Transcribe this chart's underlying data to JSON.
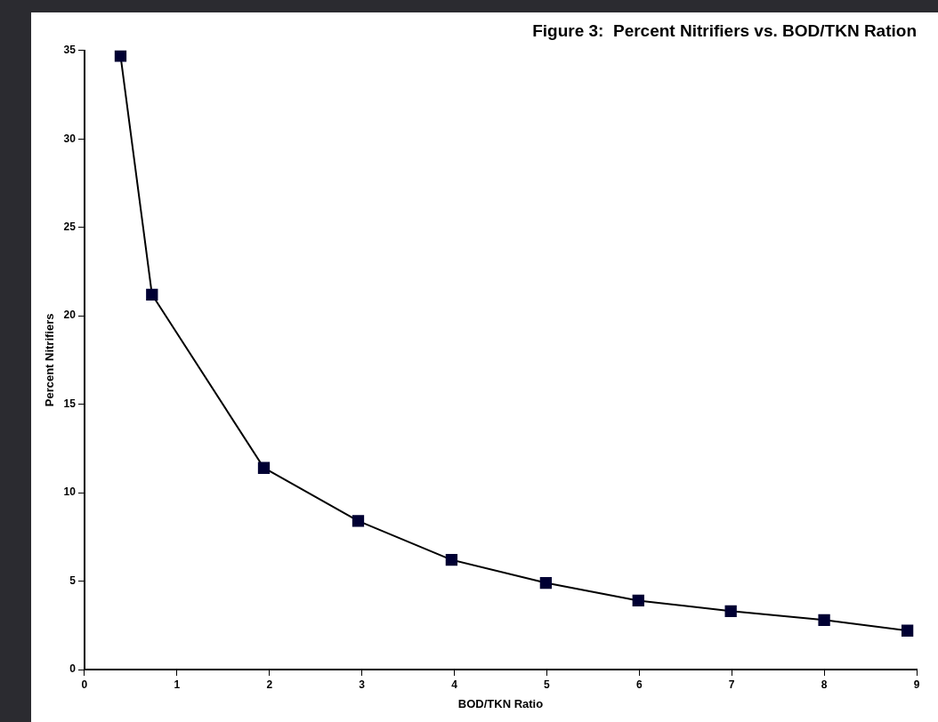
{
  "chart_data": {
    "type": "line",
    "title": "Figure 3:  Percent Nitrifiers vs. BOD/TKN Ration",
    "xlabel": "BOD/TKN Ratio",
    "ylabel": "Percent Nitrifiers",
    "x": [
      0.39,
      0.73,
      1.94,
      2.96,
      3.97,
      4.99,
      5.99,
      6.99,
      8.0,
      8.9
    ],
    "series": [
      {
        "color": "#000033",
        "values": [
          34.7,
          21.2,
          11.4,
          8.4,
          6.2,
          4.9,
          3.9,
          3.3,
          2.8,
          2.2
        ]
      }
    ],
    "xlim": [
      0,
      9
    ],
    "xticks": [
      0,
      1,
      2,
      3,
      4,
      5,
      6,
      7,
      8,
      9
    ],
    "ylim": [
      0,
      35
    ],
    "yticks": [
      0,
      5,
      10,
      15,
      20,
      25,
      30,
      35
    ],
    "grid": false,
    "legend": false,
    "marker": "square",
    "line_style": "solid"
  }
}
